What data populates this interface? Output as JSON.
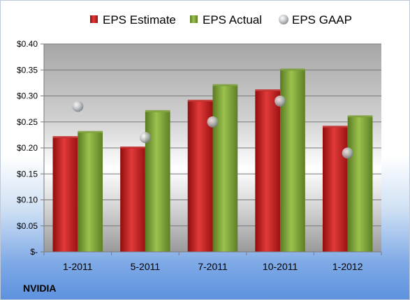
{
  "chart_data": {
    "type": "bar",
    "title": "",
    "xlabel": "",
    "ylabel": "",
    "company": "NVIDIA",
    "categories": [
      "1-2011",
      "5-2011",
      "7-2011",
      "10-2011",
      "1-2012"
    ],
    "ylim": [
      0,
      0.4
    ],
    "yticks": [
      0,
      0.05,
      0.1,
      0.15,
      0.2,
      0.25,
      0.3,
      0.35,
      0.4
    ],
    "ytick_labels": [
      "$-",
      "$0.05",
      "$0.10",
      "$0.15",
      "$0.20",
      "$0.25",
      "$0.30",
      "$0.35",
      "$0.40"
    ],
    "grid": true,
    "legend_position": "top",
    "series": [
      {
        "name": "EPS Estimate",
        "kind": "bar",
        "color": "#d01f1f",
        "values": [
          0.22,
          0.2,
          0.29,
          0.31,
          0.24
        ]
      },
      {
        "name": "EPS Actual",
        "kind": "bar",
        "color": "#82a83a",
        "values": [
          0.23,
          0.27,
          0.32,
          0.35,
          0.26
        ]
      },
      {
        "name": "EPS GAAP",
        "kind": "marker",
        "color": "#b4b8bc",
        "values": [
          0.28,
          0.22,
          0.25,
          0.29,
          0.19
        ]
      }
    ]
  }
}
